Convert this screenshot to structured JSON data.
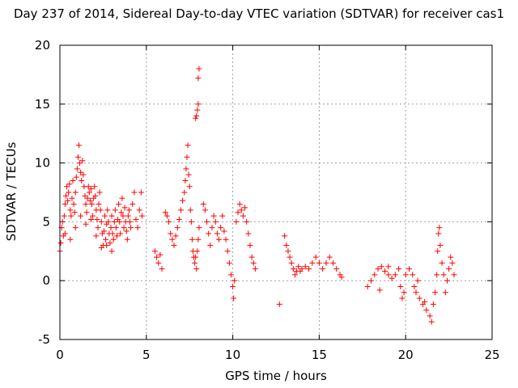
{
  "chart_data": {
    "type": "scatter",
    "title": "Day 237 of 2014, Sidereal Day-to-day VTEC variation (SDTVAR) for receiver cas1",
    "xlabel": "GPS time / hours",
    "ylabel": "SDTVAR / TECUs",
    "xlim": [
      0,
      25
    ],
    "ylim": [
      -5,
      20
    ],
    "xticks": [
      0,
      5,
      10,
      15,
      20,
      25
    ],
    "yticks": [
      -5,
      0,
      5,
      10,
      15,
      20
    ],
    "grid": true,
    "marker": "+",
    "color": "#ff0000",
    "series": [
      {
        "name": "cas1",
        "points": [
          [
            0.0,
            2.5
          ],
          [
            0.05,
            3.2
          ],
          [
            0.1,
            4.5
          ],
          [
            0.15,
            5.0
          ],
          [
            0.2,
            3.8
          ],
          [
            0.25,
            5.5
          ],
          [
            0.3,
            6.5
          ],
          [
            0.35,
            7.2
          ],
          [
            0.4,
            8.0
          ],
          [
            0.45,
            6.8
          ],
          [
            0.5,
            7.5
          ],
          [
            0.55,
            8.2
          ],
          [
            0.6,
            6.0
          ],
          [
            0.65,
            5.5
          ],
          [
            0.7,
            7.0
          ],
          [
            0.75,
            8.5
          ],
          [
            0.8,
            6.5
          ],
          [
            0.85,
            5.8
          ],
          [
            0.9,
            7.5
          ],
          [
            0.95,
            8.8
          ],
          [
            1.0,
            9.5
          ],
          [
            1.05,
            10.5
          ],
          [
            1.1,
            11.5
          ],
          [
            1.15,
            10.0
          ],
          [
            1.2,
            9.2
          ],
          [
            1.25,
            8.5
          ],
          [
            1.3,
            10.2
          ],
          [
            1.35,
            9.0
          ],
          [
            1.4,
            8.0
          ],
          [
            1.45,
            7.2
          ],
          [
            1.5,
            6.5
          ],
          [
            1.55,
            5.8
          ],
          [
            1.6,
            7.0
          ],
          [
            1.65,
            8.0
          ],
          [
            1.7,
            7.5
          ],
          [
            1.75,
            6.8
          ],
          [
            1.8,
            7.8
          ],
          [
            1.85,
            6.5
          ],
          [
            1.9,
            5.5
          ],
          [
            1.95,
            7.0
          ],
          [
            2.0,
            8.0
          ],
          [
            2.05,
            7.2
          ],
          [
            2.1,
            6.0
          ],
          [
            2.15,
            5.2
          ],
          [
            2.2,
            4.5
          ],
          [
            2.25,
            6.5
          ],
          [
            2.3,
            7.5
          ],
          [
            2.35,
            6.0
          ],
          [
            2.4,
            5.0
          ],
          [
            2.45,
            4.0
          ],
          [
            2.5,
            3.0
          ],
          [
            2.55,
            4.2
          ],
          [
            2.6,
            5.5
          ],
          [
            2.65,
            3.5
          ],
          [
            2.7,
            4.8
          ],
          [
            2.75,
            6.0
          ],
          [
            2.8,
            5.0
          ],
          [
            2.85,
            4.0
          ],
          [
            2.9,
            3.2
          ],
          [
            2.95,
            4.5
          ],
          [
            3.0,
            5.5
          ],
          [
            3.05,
            4.0
          ],
          [
            3.1,
            3.5
          ],
          [
            3.15,
            5.0
          ],
          [
            3.2,
            6.0
          ],
          [
            3.25,
            4.5
          ],
          [
            3.3,
            3.8
          ],
          [
            3.35,
            5.2
          ],
          [
            3.4,
            6.5
          ],
          [
            3.45,
            5.0
          ],
          [
            3.5,
            4.0
          ],
          [
            3.55,
            5.8
          ],
          [
            3.6,
            7.0
          ],
          [
            3.65,
            5.5
          ],
          [
            3.7,
            4.5
          ],
          [
            3.75,
            6.2
          ],
          [
            3.8,
            5.0
          ],
          [
            3.85,
            4.2
          ],
          [
            3.9,
            3.5
          ],
          [
            3.95,
            5.5
          ],
          [
            4.0,
            6.0
          ],
          [
            4.05,
            5.0
          ],
          [
            4.1,
            4.5
          ],
          [
            4.2,
            6.5
          ],
          [
            4.3,
            7.5
          ],
          [
            4.4,
            5.2
          ],
          [
            4.5,
            4.5
          ],
          [
            4.6,
            6.0
          ],
          [
            4.7,
            7.5
          ],
          [
            4.75,
            5.5
          ],
          [
            0.3,
            4.0
          ],
          [
            0.6,
            3.5
          ],
          [
            0.9,
            4.5
          ],
          [
            1.2,
            5.5
          ],
          [
            1.5,
            4.8
          ],
          [
            1.8,
            5.2
          ],
          [
            2.1,
            3.8
          ],
          [
            2.4,
            2.8
          ],
          [
            2.7,
            3.0
          ],
          [
            3.0,
            2.5
          ],
          [
            5.5,
            2.5
          ],
          [
            5.6,
            2.0
          ],
          [
            5.7,
            1.5
          ],
          [
            5.8,
            2.2
          ],
          [
            5.9,
            1.0
          ],
          [
            6.1,
            5.8
          ],
          [
            6.2,
            5.5
          ],
          [
            6.3,
            5.0
          ],
          [
            6.4,
            4.0
          ],
          [
            6.5,
            3.5
          ],
          [
            6.6,
            3.0
          ],
          [
            6.7,
            3.8
          ],
          [
            6.8,
            4.5
          ],
          [
            6.9,
            5.2
          ],
          [
            7.0,
            6.0
          ],
          [
            7.1,
            6.8
          ],
          [
            7.2,
            7.5
          ],
          [
            7.25,
            8.5
          ],
          [
            7.3,
            9.5
          ],
          [
            7.35,
            10.5
          ],
          [
            7.4,
            11.5
          ],
          [
            7.45,
            9.0
          ],
          [
            7.5,
            8.0
          ],
          [
            7.55,
            6.0
          ],
          [
            7.6,
            5.0
          ],
          [
            7.65,
            3.5
          ],
          [
            7.7,
            2.5
          ],
          [
            7.75,
            2.0
          ],
          [
            7.8,
            1.5
          ],
          [
            7.85,
            2.0
          ],
          [
            7.9,
            1.0
          ],
          [
            7.95,
            2.5
          ],
          [
            8.0,
            3.5
          ],
          [
            8.05,
            4.5
          ],
          [
            7.9,
            14.0
          ],
          [
            7.95,
            14.5
          ],
          [
            8.0,
            15.0
          ],
          [
            7.85,
            13.8
          ],
          [
            8.0,
            17.2
          ],
          [
            8.05,
            18.0
          ],
          [
            8.3,
            6.5
          ],
          [
            8.4,
            6.0
          ],
          [
            8.5,
            5.0
          ],
          [
            8.6,
            4.0
          ],
          [
            8.7,
            3.0
          ],
          [
            8.8,
            4.5
          ],
          [
            8.9,
            5.5
          ],
          [
            9.0,
            5.0
          ],
          [
            9.1,
            4.0
          ],
          [
            9.2,
            3.5
          ],
          [
            9.3,
            4.5
          ],
          [
            9.4,
            5.5
          ],
          [
            9.5,
            4.2
          ],
          [
            9.6,
            3.5
          ],
          [
            9.7,
            2.5
          ],
          [
            9.8,
            1.5
          ],
          [
            9.9,
            0.5
          ],
          [
            10.0,
            -0.5
          ],
          [
            10.05,
            -1.5
          ],
          [
            10.1,
            0.0
          ],
          [
            10.2,
            5.0
          ],
          [
            10.3,
            5.8
          ],
          [
            10.4,
            6.5
          ],
          [
            10.5,
            6.0
          ],
          [
            10.6,
            5.5
          ],
          [
            10.7,
            6.2
          ],
          [
            10.8,
            5.0
          ],
          [
            10.9,
            4.0
          ],
          [
            11.0,
            3.0
          ],
          [
            11.1,
            2.0
          ],
          [
            11.2,
            1.5
          ],
          [
            11.3,
            1.0
          ],
          [
            12.7,
            -2.0
          ],
          [
            13.0,
            3.8
          ],
          [
            13.1,
            3.0
          ],
          [
            13.2,
            2.5
          ],
          [
            13.3,
            2.0
          ],
          [
            13.4,
            1.5
          ],
          [
            13.5,
            1.0
          ],
          [
            13.6,
            0.5
          ],
          [
            13.7,
            0.8
          ],
          [
            13.8,
            1.2
          ],
          [
            13.9,
            0.8
          ],
          [
            14.0,
            1.0
          ],
          [
            14.2,
            1.2
          ],
          [
            14.4,
            1.0
          ],
          [
            14.6,
            1.5
          ],
          [
            14.8,
            2.0
          ],
          [
            15.0,
            1.5
          ],
          [
            15.2,
            1.0
          ],
          [
            15.4,
            1.5
          ],
          [
            15.6,
            2.0
          ],
          [
            15.8,
            1.5
          ],
          [
            16.0,
            1.0
          ],
          [
            16.2,
            0.5
          ],
          [
            16.3,
            0.3
          ],
          [
            17.8,
            -0.5
          ],
          [
            18.0,
            0.0
          ],
          [
            18.2,
            0.5
          ],
          [
            18.4,
            1.0
          ],
          [
            18.6,
            1.2
          ],
          [
            18.8,
            0.8
          ],
          [
            19.0,
            0.5
          ],
          [
            19.2,
            0.2
          ],
          [
            19.4,
            0.5
          ],
          [
            19.6,
            1.0
          ],
          [
            19.7,
            -0.5
          ],
          [
            19.8,
            -1.5
          ],
          [
            19.9,
            -1.0
          ],
          [
            20.0,
            0.5
          ],
          [
            20.2,
            1.0
          ],
          [
            20.4,
            0.5
          ],
          [
            20.5,
            -0.5
          ],
          [
            20.6,
            -1.0
          ],
          [
            20.8,
            -1.5
          ],
          [
            21.0,
            -2.0
          ],
          [
            21.2,
            -2.5
          ],
          [
            21.4,
            -3.0
          ],
          [
            21.5,
            -3.5
          ],
          [
            21.6,
            -2.0
          ],
          [
            21.7,
            -1.0
          ],
          [
            21.8,
            0.5
          ],
          [
            21.85,
            2.5
          ],
          [
            21.9,
            4.0
          ],
          [
            21.95,
            4.5
          ],
          [
            22.0,
            3.0
          ],
          [
            22.1,
            1.5
          ],
          [
            22.2,
            0.5
          ],
          [
            22.3,
            -1.0
          ],
          [
            22.4,
            0.0
          ],
          [
            22.5,
            1.0
          ],
          [
            22.6,
            2.0
          ],
          [
            22.7,
            1.5
          ],
          [
            22.8,
            0.5
          ],
          [
            18.5,
            -0.8
          ],
          [
            19.0,
            1.2
          ],
          [
            20.7,
            0.0
          ],
          [
            21.1,
            -1.8
          ]
        ]
      }
    ]
  }
}
